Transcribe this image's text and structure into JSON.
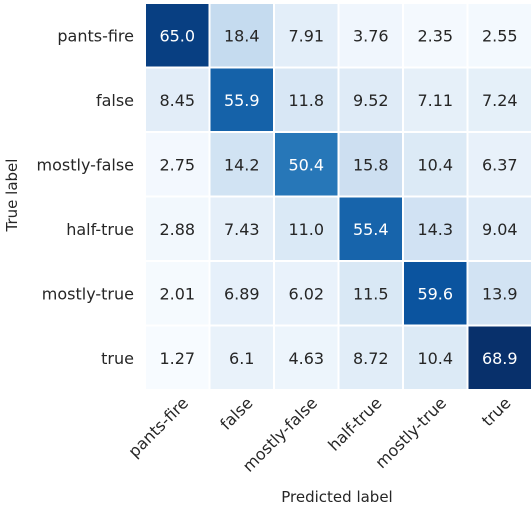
{
  "chart_data": {
    "type": "heatmap",
    "xlabel": "Predicted label",
    "ylabel": "True label",
    "x_categories": [
      "pants-fire",
      "false",
      "mostly-false",
      "half-true",
      "mostly-true",
      "true"
    ],
    "y_categories": [
      "pants-fire",
      "false",
      "mostly-false",
      "half-true",
      "mostly-true",
      "true"
    ],
    "values": [
      [
        "65.0",
        "18.4",
        "7.91",
        "3.76",
        "2.35",
        "2.55"
      ],
      [
        "8.45",
        "55.9",
        "11.8",
        "9.52",
        "7.11",
        "7.24"
      ],
      [
        "2.75",
        "14.2",
        "50.4",
        "15.8",
        "10.4",
        "6.37"
      ],
      [
        "2.88",
        "7.43",
        "11.0",
        "55.4",
        "14.3",
        "9.04"
      ],
      [
        "2.01",
        "6.89",
        "6.02",
        "11.5",
        "59.6",
        "13.9"
      ],
      [
        "1.27",
        "6.1",
        "4.63",
        "8.72",
        "10.4",
        "68.9"
      ]
    ],
    "colormap": "Blues",
    "colorbar": false,
    "grid": false
  }
}
